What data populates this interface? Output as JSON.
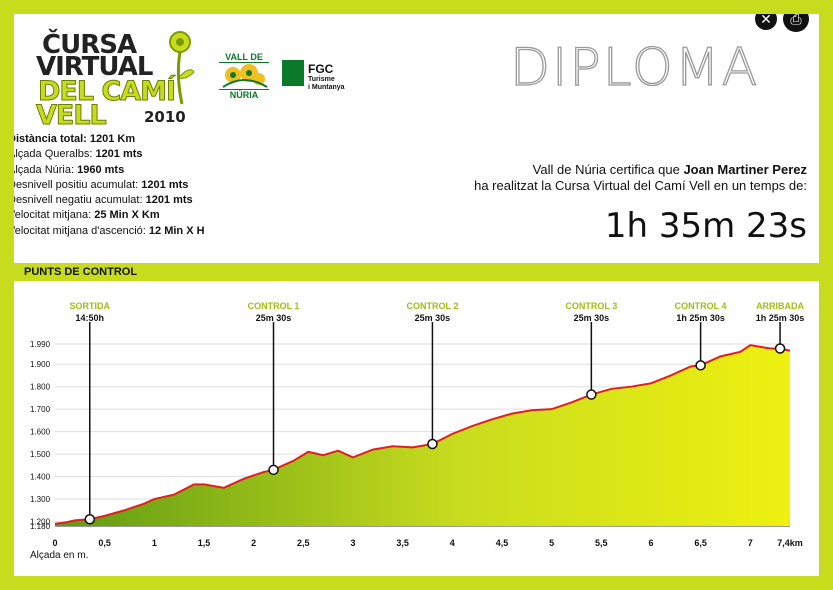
{
  "logo": {
    "line1": "ČURSA",
    "line2": "VIRTUAL",
    "line3": "DEL CAMÍ",
    "line4": "VELL",
    "year": "2010"
  },
  "sponsors": {
    "vall_line1": "VALL DE",
    "vall_line2": "NÚRIA",
    "fgc_title": "FGC",
    "fgc_sub1": "Turisme",
    "fgc_sub2": "i Muntanya"
  },
  "header": {
    "title": "DIPLOMA"
  },
  "toolbar": {
    "close_icon": "close-icon",
    "print_icon": "print-icon"
  },
  "stats": [
    {
      "label": "Distància total: ",
      "value": "1201 Km",
      "bold_label": true
    },
    {
      "label": "Alçada Queralbs: ",
      "value": "1201 mts",
      "bold_label": false
    },
    {
      "label": "Alçada Núria: ",
      "value": "1960 mts",
      "bold_label": false
    },
    {
      "label": "Desnivell positiu acumulat: ",
      "value": "1201 mts",
      "bold_label": false
    },
    {
      "label": "Desnivell negatiu acumulat: ",
      "value": "1201 mts",
      "bold_label": false
    },
    {
      "label": "Velocitat mitjana: ",
      "value": " 25 Min X Km",
      "bold_label": false
    },
    {
      "label": "Velocitat mitjana d'ascenció: ",
      "value": " 12 Min X H",
      "bold_label": false
    }
  ],
  "certificate": {
    "line1_pre": "Vall de Núria certifica que ",
    "name": "Joan Martiner Perez",
    "line2": "ha realitzat la Cursa Virtual del Camí Vell en un temps de:",
    "time": "1h 35m 23s"
  },
  "section": {
    "title": "PUNTS DE CONTROL"
  },
  "chart_data": {
    "type": "area",
    "xlabel": "Alçada  en m.",
    "x_ticks": [
      "0",
      "0,5",
      "1",
      "1,5",
      "2",
      "2,5",
      "3",
      "3,5",
      "4",
      "4,5",
      "5",
      "5,5",
      "6",
      "6,5",
      "7",
      "7,4km"
    ],
    "y_ticks": [
      "1.180",
      "1.200",
      "1.300",
      "1.400",
      "1.500",
      "1.600",
      "1.700",
      "1.800",
      "1.900",
      "1.990"
    ],
    "ylim": [
      1180,
      1990
    ],
    "xlim": [
      0,
      7.4
    ],
    "profile_x": [
      0,
      0.1,
      0.2,
      0.35,
      0.5,
      0.7,
      0.9,
      1.0,
      1.2,
      1.4,
      1.5,
      1.7,
      1.9,
      2.1,
      2.2,
      2.4,
      2.55,
      2.7,
      2.85,
      3.0,
      3.2,
      3.4,
      3.6,
      3.8,
      4.0,
      4.2,
      4.4,
      4.6,
      4.8,
      5.0,
      5.2,
      5.4,
      5.6,
      5.8,
      6.0,
      6.2,
      6.4,
      6.5,
      6.7,
      6.9,
      7.0,
      7.2,
      7.3,
      7.4
    ],
    "profile_y": [
      1190,
      1195,
      1205,
      1210,
      1225,
      1250,
      1280,
      1300,
      1320,
      1365,
      1365,
      1350,
      1390,
      1420,
      1430,
      1470,
      1510,
      1495,
      1515,
      1485,
      1520,
      1535,
      1530,
      1545,
      1590,
      1625,
      1655,
      1680,
      1695,
      1700,
      1730,
      1765,
      1790,
      1800,
      1815,
      1850,
      1890,
      1895,
      1935,
      1955,
      1985,
      1970,
      1970,
      1960
    ],
    "checkpoints": [
      {
        "label": "SORTIDA",
        "time": "14:50h",
        "x": 0.35,
        "y": 1210
      },
      {
        "label": "CONTROL 1",
        "time": "25m 30s",
        "x": 2.2,
        "y": 1430
      },
      {
        "label": "CONTROL 2",
        "time": "25m 30s",
        "x": 3.8,
        "y": 1545
      },
      {
        "label": "CONTROL 3",
        "time": "25m 30s",
        "x": 5.4,
        "y": 1765
      },
      {
        "label": "CONTROL 4",
        "time": "1h 25m 30s",
        "x": 6.5,
        "y": 1895
      },
      {
        "label": "ARRIBADA",
        "time": "1h 25m 30s",
        "x": 7.3,
        "y": 1970
      }
    ],
    "colors": {
      "fill_dark": "#5e9a12",
      "fill_light": "#e8ec10",
      "line": "#e02020",
      "label": "#9cbf10"
    }
  }
}
